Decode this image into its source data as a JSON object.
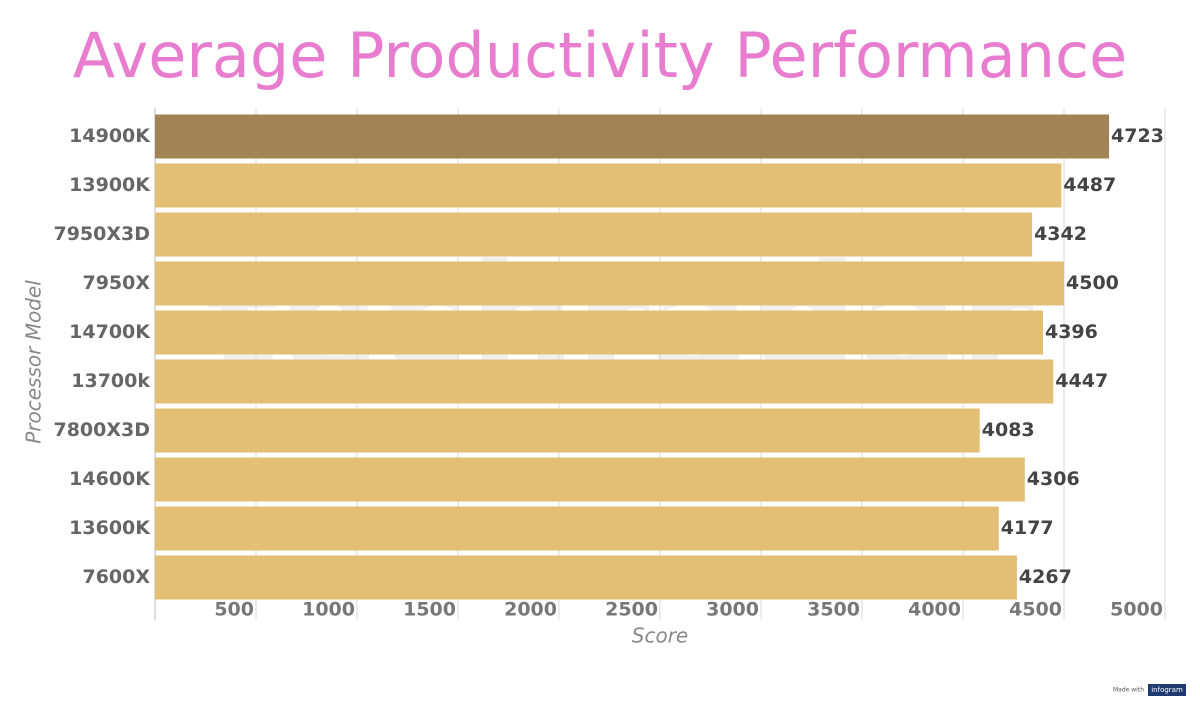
{
  "chart_data": {
    "type": "hbar",
    "title": "Average Productivity Performance",
    "x_label": "Score",
    "y_label": "Processor Model",
    "watermark": "techradar",
    "credit": [
      "Made with",
      "infogram"
    ],
    "categories": [
      "14900K",
      "13900K",
      "7950X3D",
      "7950X",
      "14700K",
      "13700k",
      "7800X3D",
      "14600K",
      "13600K",
      "7600X"
    ],
    "values": [
      4723,
      4487,
      4342,
      4500,
      4396,
      4447,
      4083,
      4306,
      4177,
      4267
    ],
    "colors": [
      "#a08453",
      "#e3bf76",
      "#e3bf76",
      "#e3bf76",
      "#e3bf76",
      "#e3bf76",
      "#e3bf76",
      "#e3bf76",
      "#e3bf76",
      "#e3bf76"
    ],
    "xlim": [
      0,
      5000
    ],
    "xticks": [
      500,
      1000,
      1500,
      2000,
      2500,
      3000,
      3500,
      4000,
      4500,
      5000
    ],
    "grid": true
  }
}
